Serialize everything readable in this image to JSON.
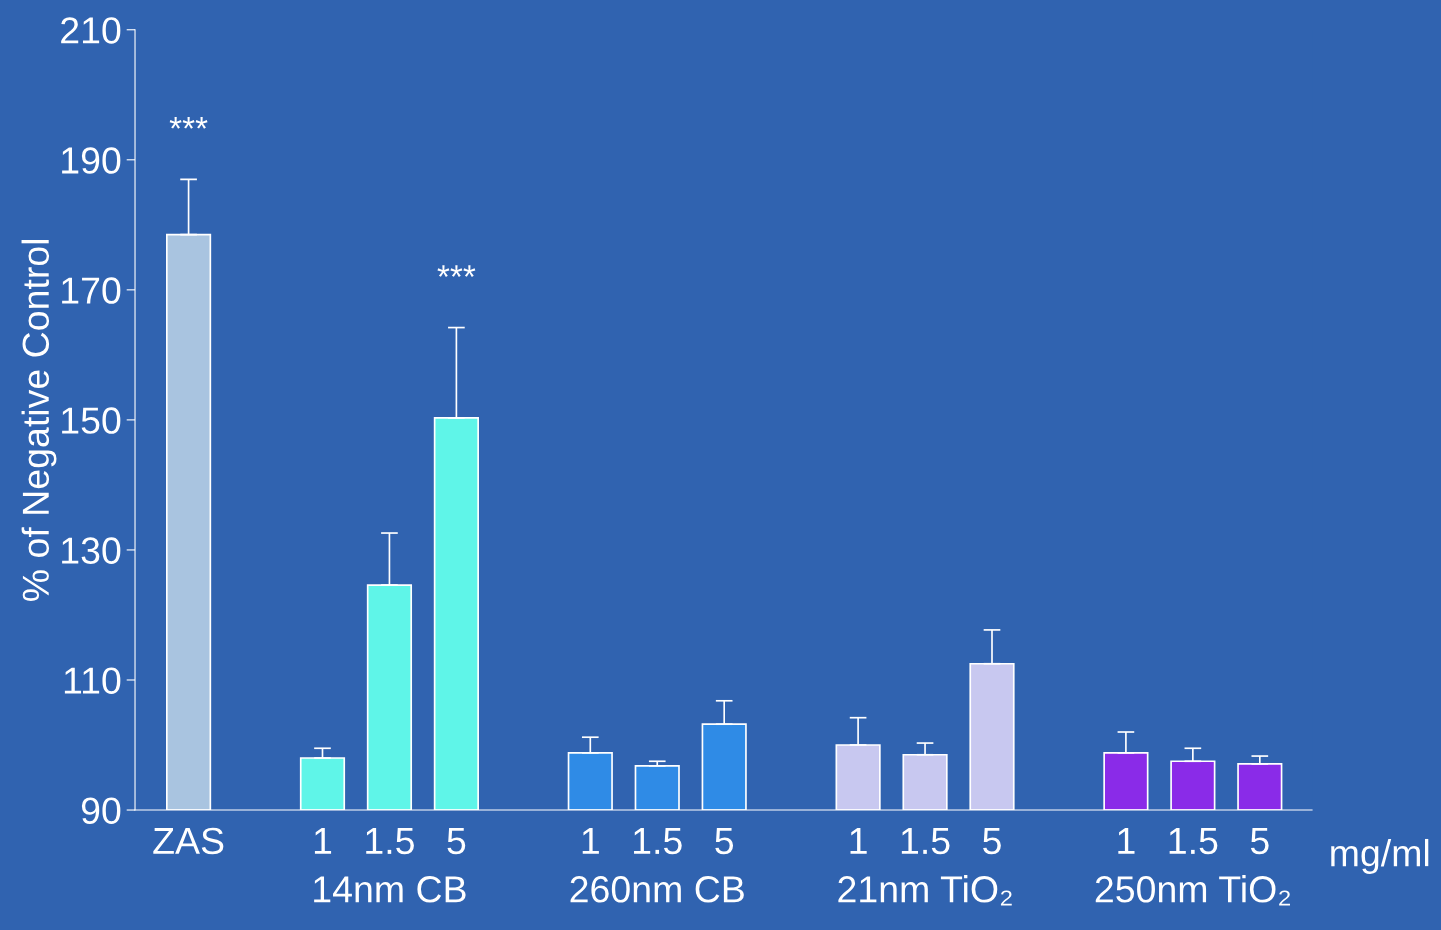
{
  "chart_data": {
    "type": "bar",
    "ylabel": "% of Negative Control",
    "categories": [
      "ZAS",
      null,
      "1",
      "1.5",
      "5",
      null,
      "1",
      "1.5",
      "5",
      null,
      "1",
      "1.5",
      "5",
      null,
      "1",
      "1.5",
      "5"
    ],
    "values": [
      178.5,
      null,
      98,
      124.6,
      150.3,
      null,
      98.8,
      96.8,
      103.2,
      null,
      100,
      98.5,
      112.5,
      null,
      98.8,
      97.5,
      97.1
    ],
    "errors": [
      [
        178.5,
        187
      ],
      null,
      [
        98,
        99.5
      ],
      [
        124.6,
        132.6
      ],
      [
        150.3,
        164.2
      ],
      null,
      [
        98.8,
        101.2
      ],
      [
        96.8,
        97.5
      ],
      [
        103.2,
        106.8
      ],
      null,
      [
        100,
        104.2
      ],
      [
        98.5,
        100.3
      ],
      [
        112.5,
        117.7
      ],
      null,
      [
        98.8,
        102
      ],
      [
        97.5,
        99.5
      ],
      [
        97.1,
        98.3
      ]
    ],
    "colors": [
      "#a9c4e0",
      null,
      "#5ff5e8",
      "#5ff5e8",
      "#5ff5e8",
      null,
      "#2f8be6",
      "#2f8be6",
      "#2f8be6",
      null,
      "#c8c8f0",
      "#c8c8f0",
      "#c8c8f0",
      null,
      "#8a2be8",
      "#8a2be8",
      "#8a2be8"
    ],
    "ylim": [
      90,
      210
    ],
    "yticks": [
      90,
      110,
      130,
      150,
      170,
      190,
      210
    ],
    "grid": false,
    "annotations": [
      "***",
      "***",
      "mg/ml",
      "14nm CB",
      "260nm CB",
      "21nm TiO₂",
      "250nm TiO₂"
    ]
  }
}
